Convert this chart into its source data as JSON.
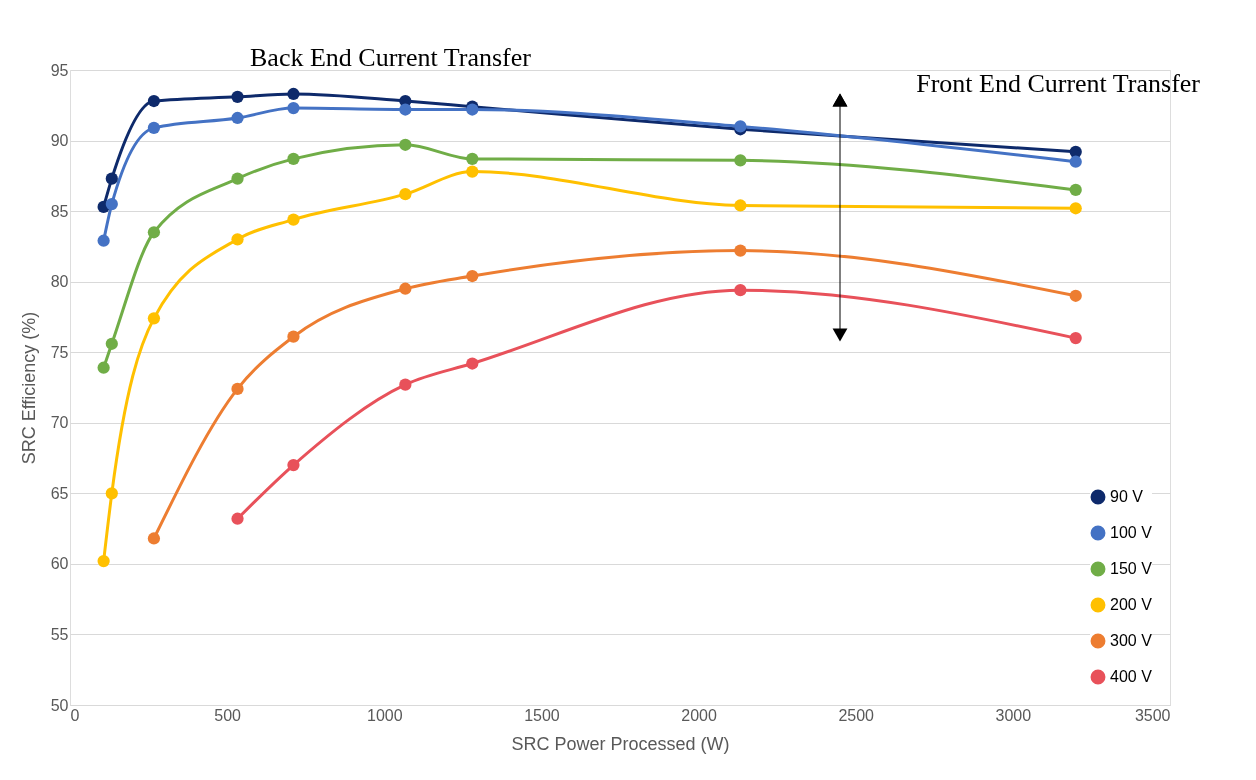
{
  "chart_data": {
    "type": "line",
    "xlabel": "SRC Power Processed (W)",
    "ylabel": "SRC Efficiency (%)",
    "x": [
      107,
      133,
      267,
      533,
      711,
      1067,
      1280,
      2133,
      3200
    ],
    "series": [
      {
        "name": "90 V",
        "color": "#0e2a6b",
        "values": [
          85.3,
          87.3,
          92.8,
          93.1,
          93.3,
          92.8,
          92.4,
          90.8,
          89.2
        ]
      },
      {
        "name": "100 V",
        "color": "#4472c4",
        "values": [
          82.9,
          85.5,
          90.9,
          91.6,
          92.3,
          92.2,
          92.2,
          91.0,
          88.5
        ]
      },
      {
        "name": "150 V",
        "color": "#70ad47",
        "values": [
          73.9,
          75.6,
          83.5,
          87.3,
          88.7,
          89.7,
          88.7,
          88.6,
          86.5
        ]
      },
      {
        "name": "200 V",
        "color": "#ffc000",
        "values": [
          60.2,
          65.0,
          77.4,
          83.0,
          84.4,
          86.2,
          87.8,
          85.4,
          85.2
        ]
      },
      {
        "name": "300 V",
        "color": "#ed7d31",
        "values": [
          null,
          null,
          61.8,
          72.4,
          76.1,
          79.5,
          80.4,
          82.2,
          79.0
        ]
      },
      {
        "name": "400 V",
        "color": "#e8515a",
        "values": [
          null,
          null,
          null,
          63.2,
          67.0,
          72.7,
          74.2,
          79.4,
          76.0
        ]
      }
    ],
    "xlim": [
      0,
      3500
    ],
    "xticks": [
      0,
      500,
      1000,
      1500,
      2000,
      2500,
      3000,
      3500
    ],
    "ylim": [
      50,
      95
    ],
    "yticks": [
      50,
      55,
      60,
      65,
      70,
      75,
      80,
      85,
      90,
      95
    ],
    "grid": "y",
    "legend": "bottom right",
    "marker": "circle",
    "line_style": "solid",
    "annotations": [
      "Back End Current Transfer",
      "Front End Current Transfer"
    ]
  }
}
